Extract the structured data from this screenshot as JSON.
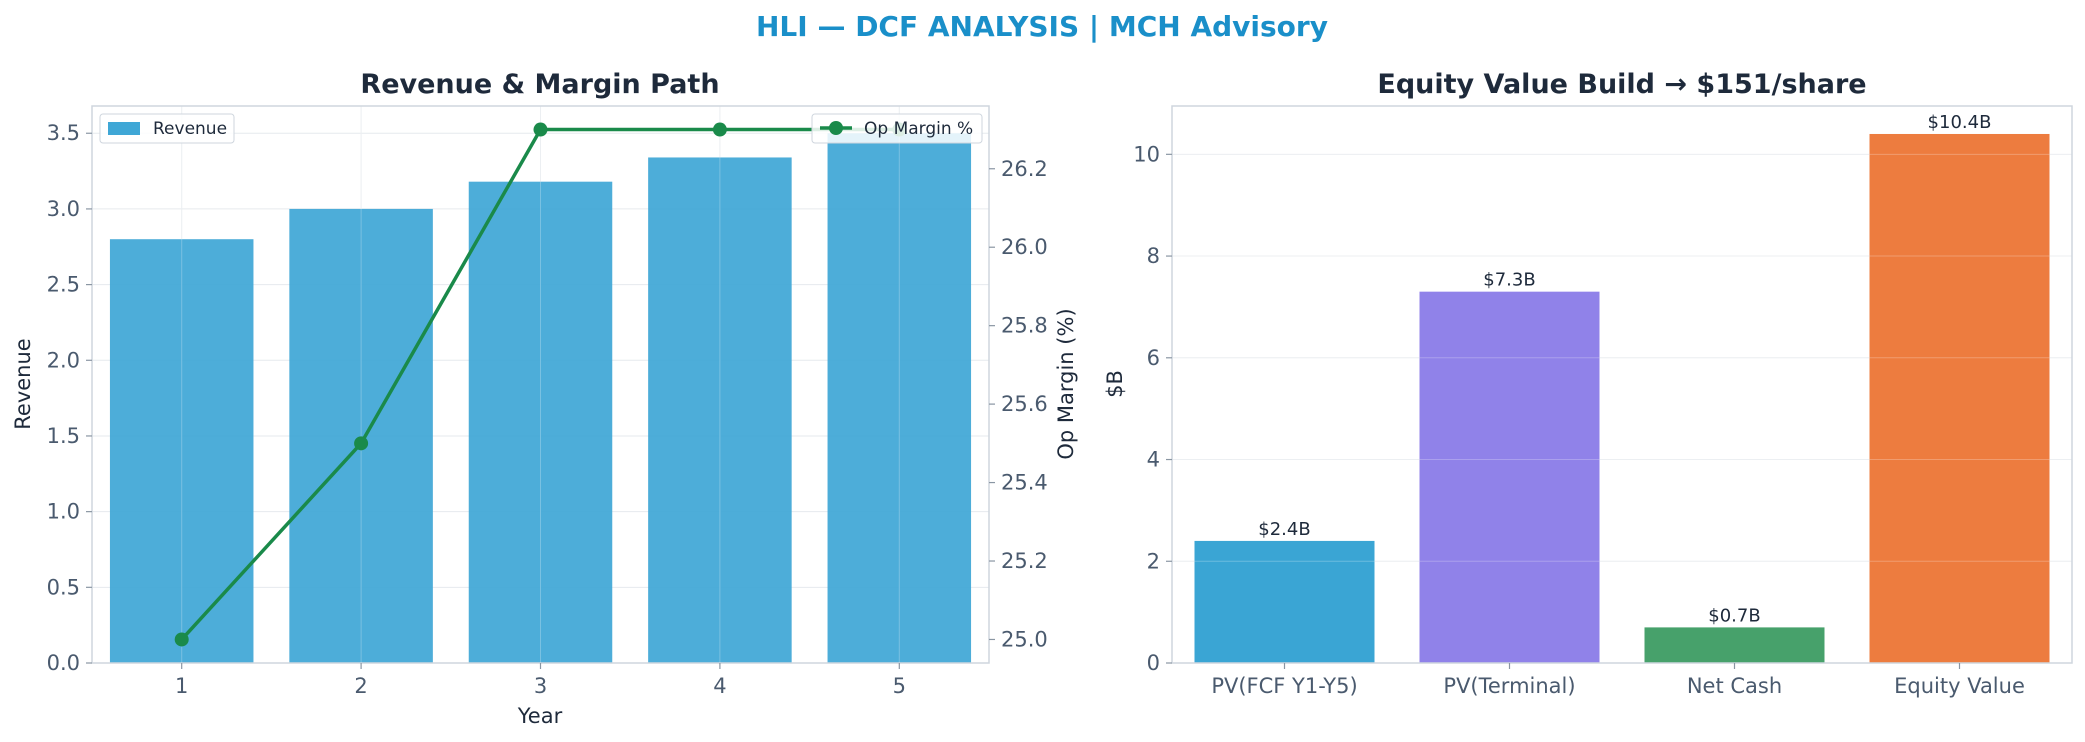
{
  "suptitle": "HLI — DCF ANALYSIS | MCH Advisory",
  "chart_data": [
    {
      "type": "bar",
      "title": "Revenue & Margin Path",
      "xlabel": "Year",
      "ylabel": "Revenue",
      "y2label": "Op Margin (%)",
      "categories": [
        "1",
        "2",
        "3",
        "4",
        "5"
      ],
      "ylim": [
        0,
        3.68
      ],
      "y2lim": [
        24.94,
        26.36
      ],
      "yticks": [
        "0.0",
        "0.5",
        "1.0",
        "1.5",
        "2.0",
        "2.5",
        "3.0",
        "3.5"
      ],
      "y2ticks": [
        "25.0",
        "25.2",
        "25.4",
        "25.6",
        "25.8",
        "26.0",
        "26.2"
      ],
      "grid": true,
      "series": [
        {
          "name": "Revenue",
          "type": "bar",
          "axis": "left",
          "color": "#3fa7d6",
          "values": [
            2.8,
            3.0,
            3.18,
            3.34,
            3.5
          ]
        },
        {
          "name": "Op Margin %",
          "type": "line",
          "axis": "right",
          "color": "#1a8a4a",
          "values": [
            25.0,
            25.5,
            26.3,
            26.3,
            26.3
          ]
        }
      ],
      "legend": [
        {
          "name": "Revenue",
          "placement": "top-left"
        },
        {
          "name": "Op Margin %",
          "placement": "top-right"
        }
      ]
    },
    {
      "type": "bar",
      "title": "Equity Value Build → $151/share",
      "ylabel": "$B",
      "categories": [
        "PV(FCF Y1-Y5)",
        "PV(Terminal)",
        "Net Cash",
        "Equity Value"
      ],
      "values": [
        2.4,
        7.3,
        0.7,
        10.4
      ],
      "labels": [
        "$2.4B",
        "$7.3B",
        "$0.7B",
        "$10.4B"
      ],
      "colors": [
        "#2fa0d2",
        "#8a7be8",
        "#3d9c63",
        "#ec7535"
      ],
      "ylim": [
        0,
        10.95
      ],
      "yticks": [
        "0",
        "2",
        "4",
        "6",
        "8",
        "10"
      ],
      "grid": true
    }
  ]
}
